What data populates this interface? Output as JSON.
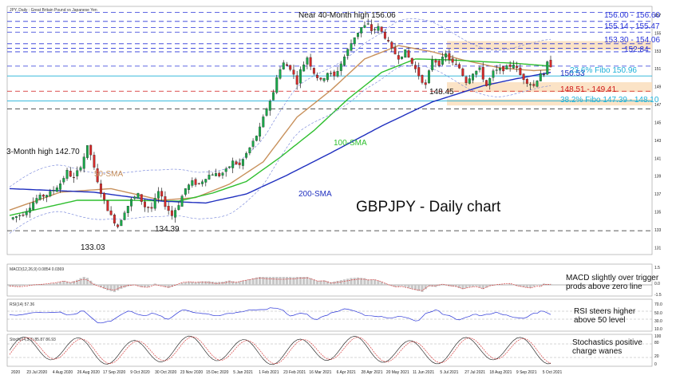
{
  "chart_data": {
    "type": "candlestick",
    "symbol_label": "JPY, Daily : Great Britain Pound vs Japanese Yen",
    "title": "GBPJPY - Daily chart",
    "ylim": [
      130.5,
      157.8
    ],
    "price_ticks": [
      157,
      155,
      153,
      151,
      149,
      147,
      145,
      143,
      141,
      139,
      137,
      135,
      133,
      131
    ],
    "date_labels": [
      "2020",
      "23 Jul 2020",
      "4 Aug 2020",
      "26 Aug 2020",
      "17 Sep 2020",
      "9 Oct 2020",
      "30 Oct 2020",
      "23 Nov 2020",
      "15 Dec 2020",
      "5 Jan 2021",
      "1 Feb 2021",
      "23 Feb 2021",
      "16 Mar 2021",
      "6 Apr 2021",
      "28 Apr 2021",
      "20 May 2021",
      "11 Jun 2021",
      "5 Jul 2021",
      "27 Jul 2021",
      "18 Aug 2021",
      "9 Sep 2021",
      "5 Oct 2021"
    ],
    "price_path": [
      [
        0,
        134.2
      ],
      [
        4,
        134.8
      ],
      [
        8,
        136.5
      ],
      [
        12,
        137.1
      ],
      [
        15,
        138.2
      ],
      [
        17,
        139.5
      ],
      [
        19,
        138.7
      ],
      [
        21,
        140.2
      ],
      [
        23,
        142.2
      ],
      [
        24,
        141.4
      ],
      [
        26,
        138.2
      ],
      [
        28,
        136.2
      ],
      [
        30,
        134.5
      ],
      [
        32,
        133.4
      ],
      [
        34,
        135.1
      ],
      [
        36,
        136.3
      ],
      [
        38,
        136.9
      ],
      [
        40,
        135.6
      ],
      [
        42,
        135.4
      ],
      [
        44,
        137.2
      ],
      [
        46,
        135.8
      ],
      [
        48,
        134.6
      ],
      [
        50,
        135.9
      ],
      [
        52,
        137.6
      ],
      [
        54,
        138.3
      ],
      [
        56,
        138.1
      ],
      [
        58,
        138.9
      ],
      [
        60,
        139.3
      ],
      [
        62,
        139.1
      ],
      [
        64,
        139.6
      ],
      [
        66,
        140.6
      ],
      [
        68,
        140.2
      ],
      [
        70,
        141.5
      ],
      [
        72,
        142.8
      ],
      [
        74,
        144.3
      ],
      [
        76,
        146.6
      ],
      [
        78,
        148.3
      ],
      [
        79,
        150.2
      ],
      [
        81,
        151.6
      ],
      [
        83,
        151.1
      ],
      [
        85,
        149.5
      ],
      [
        86,
        150.8
      ],
      [
        88,
        152.3
      ],
      [
        90,
        150.6
      ],
      [
        92,
        149.6
      ],
      [
        94,
        150.6
      ],
      [
        96,
        150.1
      ],
      [
        98,
        151.6
      ],
      [
        100,
        153.1
      ],
      [
        102,
        154.6
      ],
      [
        104,
        155.6
      ],
      [
        106,
        155.9
      ],
      [
        107,
        155.3
      ],
      [
        109,
        155.6
      ],
      [
        111,
        154.6
      ],
      [
        113,
        153.1
      ],
      [
        115,
        152.3
      ],
      [
        117,
        152.9
      ],
      [
        119,
        151.6
      ],
      [
        121,
        150.3
      ],
      [
        123,
        149.1
      ],
      [
        125,
        152.1
      ],
      [
        127,
        151.6
      ],
      [
        129,
        152.6
      ],
      [
        131,
        151.6
      ],
      [
        133,
        151.1
      ],
      [
        135,
        149.6
      ],
      [
        137,
        150.6
      ],
      [
        139,
        150.9
      ],
      [
        141,
        149.1
      ],
      [
        143,
        150.6
      ],
      [
        145,
        150.9
      ],
      [
        147,
        151.1
      ],
      [
        149,
        151.6
      ],
      [
        151,
        150.3
      ],
      [
        153,
        149.6
      ],
      [
        155,
        149.1
      ],
      [
        157,
        150.6
      ],
      [
        158,
        150.1
      ],
      [
        159,
        151.6
      ],
      [
        160,
        151.4
      ]
    ],
    "n_bars": 160,
    "series": [
      {
        "name": "50-SMA",
        "color": "#c8915c",
        "values": [
          [
            0,
            135.2
          ],
          [
            15,
            137.2
          ],
          [
            30,
            137.6
          ],
          [
            45,
            136.3
          ],
          [
            55,
            136.6
          ],
          [
            65,
            138.1
          ],
          [
            75,
            140.6
          ],
          [
            85,
            145.6
          ],
          [
            95,
            148.6
          ],
          [
            105,
            152.1
          ],
          [
            115,
            153.6
          ],
          [
            125,
            152.9
          ],
          [
            135,
            151.9
          ],
          [
            145,
            151.1
          ],
          [
            155,
            150.8
          ],
          [
            160,
            150.9
          ]
        ]
      },
      {
        "name": "100-SMA",
        "color": "#2fbf2f",
        "values": [
          [
            0,
            134.6
          ],
          [
            20,
            136.3
          ],
          [
            35,
            136.3
          ],
          [
            50,
            136.2
          ],
          [
            60,
            137.1
          ],
          [
            70,
            138.4
          ],
          [
            80,
            141.1
          ],
          [
            90,
            144.1
          ],
          [
            100,
            147.6
          ],
          [
            110,
            150.6
          ],
          [
            120,
            152.1
          ],
          [
            130,
            152.0
          ],
          [
            140,
            151.8
          ],
          [
            150,
            151.6
          ],
          [
            160,
            151.3
          ]
        ]
      },
      {
        "name": "200-SMA",
        "color": "#1f2fbf",
        "values": [
          [
            0,
            137.6
          ],
          [
            25,
            137.2
          ],
          [
            45,
            136.2
          ],
          [
            58,
            136.0
          ],
          [
            70,
            137.0
          ],
          [
            82,
            139.1
          ],
          [
            95,
            141.6
          ],
          [
            110,
            144.6
          ],
          [
            125,
            147.3
          ],
          [
            140,
            149.1
          ],
          [
            150,
            149.9
          ],
          [
            160,
            150.6
          ]
        ]
      }
    ],
    "levels": [
      {
        "value": 157.3,
        "style": "dashed",
        "label": "156.00 - 156.60",
        "color": "#2a35d8"
      },
      {
        "value": 156.3,
        "style": "dashed",
        "label": "",
        "color": "#2a35d8"
      },
      {
        "value": 155.6,
        "style": "dashed",
        "label": "155.14 , 155.47",
        "color": "#2a35d8"
      },
      {
        "value": 155.1,
        "style": "dashed",
        "label": "",
        "color": "#2a35d8"
      },
      {
        "value": 153.8,
        "style": "dashed",
        "label": "153.30 - 154.06",
        "color": "#2a35d8"
      },
      {
        "value": 153.3,
        "style": "dashed",
        "label": "",
        "color": "#2a35d8"
      },
      {
        "value": 152.9,
        "style": "dashed",
        "label": "152.84",
        "color": "#2a35d8"
      },
      {
        "value": 151.3,
        "style": "dashed",
        "label": "",
        "color": "#2a35d8"
      },
      {
        "value": 150.2,
        "style": "solid",
        "label": "23.6% Fibo 150.96",
        "color": "#1eb0d8"
      },
      {
        "value": 148.5,
        "style": "dashed",
        "label": "148.51 - 149.41",
        "color": "#d01818"
      },
      {
        "value": 147.4,
        "style": "solid",
        "label": "38.2% Fibo 147.39 - 148.10",
        "color": "#1eb0d8"
      },
      {
        "value": 146.5,
        "style": "dashed",
        "label": "",
        "color": "#222"
      },
      {
        "value": 132.9,
        "style": "dashed",
        "label": "",
        "color": "#222"
      }
    ],
    "zones": [
      {
        "from": 153.1,
        "to": 154.1
      },
      {
        "from": 148.4,
        "to": 149.5
      },
      {
        "from": 146.9,
        "to": 147.6
      }
    ],
    "annotations": [
      {
        "text": "Near 40-Month high 156.06",
        "color": "#111"
      },
      {
        "text": "3-Month high 142.70",
        "color": "#111"
      },
      {
        "text": "50-SMA",
        "color": "#c8915c"
      },
      {
        "text": "100-SMA",
        "color": "#2fbf2f"
      },
      {
        "text": "200-SMA",
        "color": "#1f2fbf"
      },
      {
        "text": "134.39",
        "color": "#111"
      },
      {
        "text": "133.03",
        "color": "#111"
      },
      {
        "text": "148.45",
        "color": "#111"
      },
      {
        "text": "150.53",
        "color": "#1f2fbf"
      }
    ],
    "indicators": [
      {
        "id": "macd",
        "header": "MACD(12,26,9) 0.0854 0.0369",
        "note": [
          "MACD slightly over trigger",
          "prods above zero line"
        ],
        "ticks": [
          "1.5",
          "0.0",
          "-1.5"
        ],
        "color": "#111"
      },
      {
        "id": "rsi",
        "header": "RSI(14) 57.36",
        "note": [
          "RSI steers higher",
          "above 50 level"
        ],
        "ticks": [
          "70.0",
          "50.0",
          "30.0",
          "10.0"
        ],
        "color": "#2a35d8"
      },
      {
        "id": "stoch",
        "header": "Stoch(14,3,3) 85.87 86.93",
        "note": [
          "Stochastics positive",
          "charge wanes"
        ],
        "ticks": [
          "100",
          "80",
          "20",
          "0"
        ],
        "color": "#111"
      }
    ],
    "grid": false
  }
}
